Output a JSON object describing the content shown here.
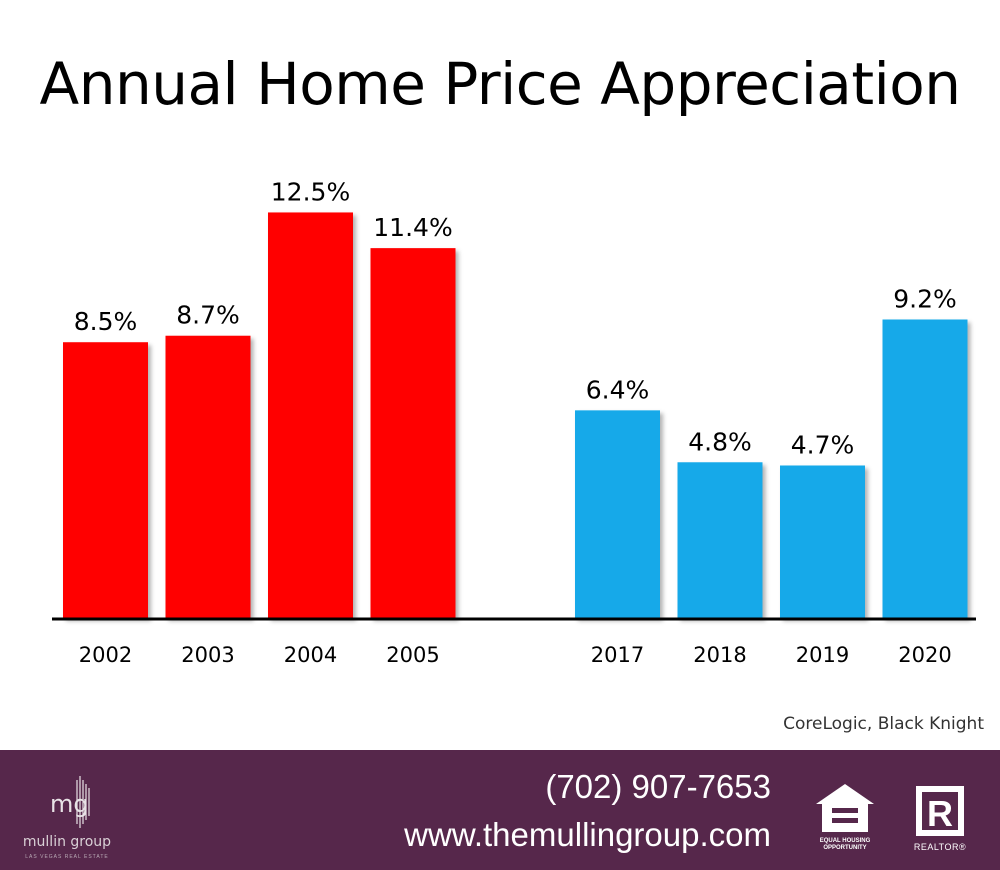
{
  "title": "Annual Home Price Appreciation",
  "chart_data": {
    "type": "bar",
    "title": "Annual Home Price Appreciation",
    "categories": [
      "2002",
      "2003",
      "2004",
      "2005",
      "2017",
      "2018",
      "2019",
      "2020"
    ],
    "values": [
      8.5,
      8.7,
      12.5,
      11.4,
      6.4,
      4.8,
      4.7,
      9.2
    ],
    "data_labels": [
      "8.5%",
      "8.7%",
      "12.5%",
      "11.4%",
      "6.4%",
      "4.8%",
      "4.7%",
      "9.2%"
    ],
    "colors": [
      "#ff0000",
      "#ff0000",
      "#ff0000",
      "#ff0000",
      "#12a9e9",
      "#12a9e9",
      "#12a9e9",
      "#12a9e9"
    ],
    "ylim": [
      0,
      13.5
    ],
    "grid": false,
    "xlabel": "",
    "ylabel": ""
  },
  "source": "CoreLogic, Black Knight",
  "footer": {
    "logo_mark": "mg",
    "logo_name": "mullin group",
    "logo_tagline": "LAS VEGAS REAL ESTATE",
    "phone": "(702) 907-7653",
    "website": "www.themullingroup.com",
    "eho_label": "EQUAL HOUSING OPPORTUNITY",
    "realtor_label": "REALTOR®",
    "background_color": "#56274b",
    "eho_icon": "equal-housing-house-icon",
    "realtor_icon": "realtor-r-icon"
  }
}
